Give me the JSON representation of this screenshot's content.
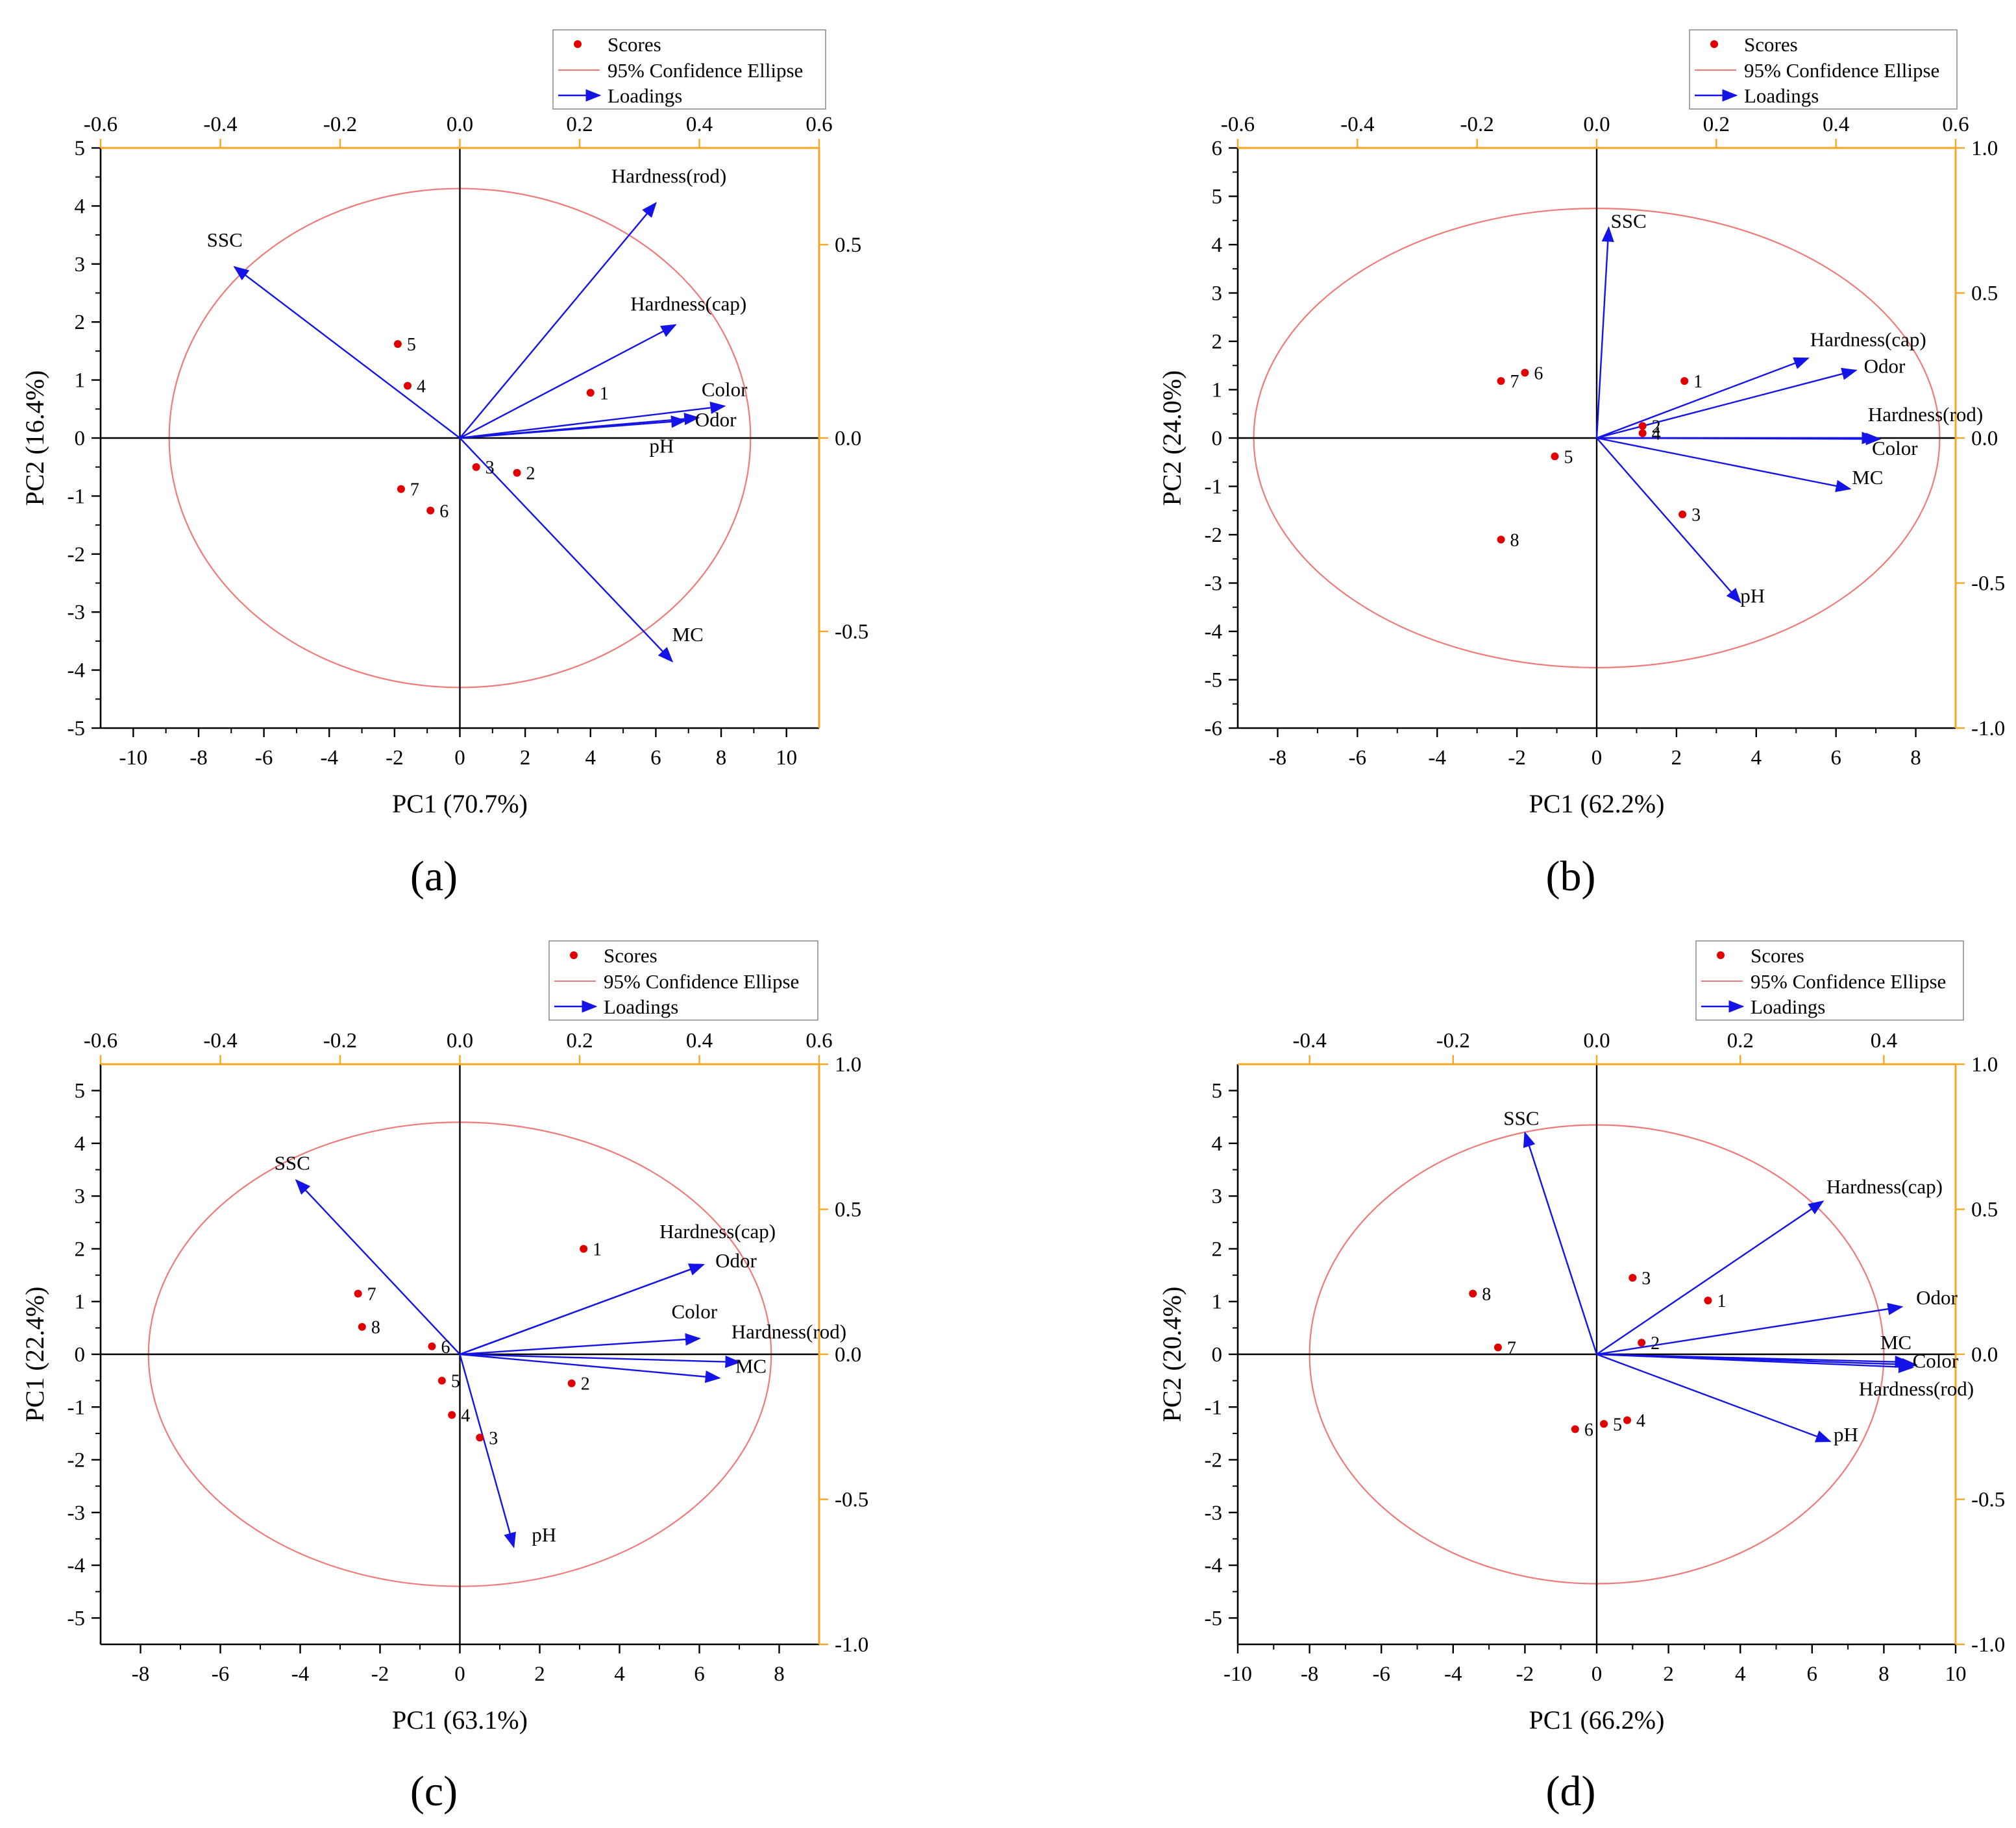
{
  "colors": {
    "score": "#e00000",
    "ellipse": "#f07a7a",
    "loading": "#1414e6",
    "right_axis": "#f5a623",
    "axis": "#000000"
  },
  "legend": {
    "scores": "Scores",
    "ellipse": "95% Confidence Ellipse",
    "loadings": "Loadings"
  },
  "chart_data": [
    {
      "panel": "(a)",
      "type": "scatter",
      "xlabel": "PC1 (70.7%)",
      "ylabel": "PC2 (16.4%)",
      "xlim": [
        -11,
        11
      ],
      "ylim": [
        -5,
        5
      ],
      "xticks": [
        -10,
        -8,
        -6,
        -4,
        -2,
        0,
        2,
        4,
        6,
        8,
        10
      ],
      "yticks": [
        -5,
        -4,
        -3,
        -2,
        -1,
        0,
        1,
        2,
        3,
        4,
        5
      ],
      "top_axis": {
        "ticks": [
          "-0.6",
          "-0.4",
          "-0.2",
          "0.0",
          "0.2",
          "0.4",
          "0.6"
        ],
        "lim": [
          -0.6,
          0.6
        ]
      },
      "right_axis": {
        "ticks": [
          "0.5",
          "0.0",
          "-0.5"
        ],
        "lim": [
          -0.75,
          0.75
        ]
      },
      "ellipse": {
        "rx": 8.9,
        "ry": 4.3
      },
      "scores": [
        {
          "label": "1",
          "x": 4.0,
          "y": 0.78
        },
        {
          "label": "2",
          "x": 1.75,
          "y": -0.6
        },
        {
          "label": "3",
          "x": 0.5,
          "y": -0.5
        },
        {
          "label": "4",
          "x": -1.6,
          "y": 0.9
        },
        {
          "label": "5",
          "x": -1.9,
          "y": 1.62
        },
        {
          "label": "6",
          "x": -0.9,
          "y": -1.25
        },
        {
          "label": "7",
          "x": -1.8,
          "y": -0.88
        }
      ],
      "loadings": [
        {
          "name": "Hardness(rod)",
          "x": 6.0,
          "y": 4.05,
          "lx": 6.4,
          "ly": 4.4,
          "anchor": "middle"
        },
        {
          "name": "SSC",
          "x": -6.9,
          "y": 2.95,
          "lx": -7.2,
          "ly": 3.3,
          "anchor": "middle"
        },
        {
          "name": "Hardness(cap)",
          "x": 6.6,
          "y": 1.95,
          "lx": 7.0,
          "ly": 2.2,
          "anchor": "middle"
        },
        {
          "name": "Color",
          "x": 8.1,
          "y": 0.55,
          "lx": 7.4,
          "ly": 0.72,
          "anchor": "start"
        },
        {
          "name": "Odor",
          "x": 7.3,
          "y": 0.35,
          "lx": 7.2,
          "ly": 0.2,
          "anchor": "start"
        },
        {
          "name": "pH",
          "x": 6.9,
          "y": 0.3,
          "lx": 5.8,
          "ly": -0.25,
          "anchor": "start"
        },
        {
          "name": "MC",
          "x": 6.5,
          "y": -3.85,
          "lx": 6.5,
          "ly": -3.5,
          "anchor": "start"
        }
      ]
    },
    {
      "panel": "(b)",
      "type": "scatter",
      "xlabel": "PC1 (62.2%)",
      "ylabel": "PC2 (24.0%)",
      "xlim": [
        -9,
        9
      ],
      "ylim": [
        -6,
        6
      ],
      "xticks": [
        -8,
        -6,
        -4,
        -2,
        0,
        2,
        4,
        6,
        8
      ],
      "yticks": [
        -6,
        -5,
        -4,
        -3,
        -2,
        -1,
        0,
        1,
        2,
        3,
        4,
        5,
        6
      ],
      "top_axis": {
        "ticks": [
          "-0.6",
          "-0.4",
          "-0.2",
          "0.0",
          "0.2",
          "0.4",
          "0.6"
        ],
        "lim": [
          -0.6,
          0.6
        ]
      },
      "right_axis": {
        "ticks": [
          "1.0",
          "0.5",
          "0.0",
          "-0.5",
          "-1.0"
        ],
        "lim": [
          -1.0,
          1.0
        ]
      },
      "ellipse": {
        "rx": 8.6,
        "ry": 4.75
      },
      "scores": [
        {
          "label": "1",
          "x": 2.2,
          "y": 1.18
        },
        {
          "label": "2",
          "x": 1.15,
          "y": 0.25
        },
        {
          "label": "3",
          "x": 2.15,
          "y": -1.58
        },
        {
          "label": "4",
          "x": 1.15,
          "y": 0.1
        },
        {
          "label": "5",
          "x": -1.05,
          "y": -0.38
        },
        {
          "label": "6",
          "x": -1.8,
          "y": 1.35
        },
        {
          "label": "7",
          "x": -2.4,
          "y": 1.18
        },
        {
          "label": "8",
          "x": -2.4,
          "y": -2.1
        }
      ],
      "loadings": [
        {
          "name": "SSC",
          "x": 0.3,
          "y": 4.35,
          "lx": 0.35,
          "ly": 4.35,
          "anchor": "start"
        },
        {
          "name": "Hardness(cap)",
          "x": 5.3,
          "y": 1.65,
          "lx": 5.35,
          "ly": 1.9,
          "anchor": "start"
        },
        {
          "name": "Odor",
          "x": 6.5,
          "y": 1.4,
          "lx": 6.7,
          "ly": 1.35,
          "anchor": "start"
        },
        {
          "name": "Hardness(rod)",
          "x": 7.0,
          "y": 0.0,
          "lx": 6.8,
          "ly": 0.35,
          "anchor": "start"
        },
        {
          "name": "Color",
          "x": 7.1,
          "y": -0.02,
          "lx": 6.9,
          "ly": -0.35,
          "anchor": "start"
        },
        {
          "name": "MC",
          "x": 6.35,
          "y": -1.05,
          "lx": 6.4,
          "ly": -0.95,
          "anchor": "start"
        },
        {
          "name": "pH",
          "x": 3.6,
          "y": -3.4,
          "lx": 3.6,
          "ly": -3.4,
          "anchor": "start"
        }
      ]
    },
    {
      "panel": "(c)",
      "type": "scatter",
      "xlabel": "PC1 (63.1%)",
      "ylabel": "PC1 (22.4%)",
      "xlim": [
        -9,
        9
      ],
      "ylim": [
        -5.5,
        5.5
      ],
      "xticks": [
        -8,
        -6,
        -4,
        -2,
        0,
        2,
        4,
        6,
        8
      ],
      "yticks": [
        -5,
        -4,
        -3,
        -2,
        -1,
        0,
        1,
        2,
        3,
        4,
        5
      ],
      "top_axis": {
        "ticks": [
          "-0.6",
          "-0.4",
          "-0.2",
          "0.0",
          "0.2",
          "0.4",
          "0.6"
        ],
        "lim": [
          -0.6,
          0.6
        ]
      },
      "right_axis": {
        "ticks": [
          "1.0",
          "0.5",
          "0.0",
          "-0.5",
          "-1.0"
        ],
        "lim": [
          -1.0,
          1.0
        ]
      },
      "ellipse": {
        "rx": 7.8,
        "ry": 4.4
      },
      "scores": [
        {
          "label": "1",
          "x": 3.1,
          "y": 2.0
        },
        {
          "label": "2",
          "x": 2.8,
          "y": -0.55
        },
        {
          "label": "3",
          "x": 0.5,
          "y": -1.58
        },
        {
          "label": "4",
          "x": -0.2,
          "y": -1.15
        },
        {
          "label": "5",
          "x": -0.45,
          "y": -0.5
        },
        {
          "label": "6",
          "x": -0.7,
          "y": 0.15
        },
        {
          "label": "7",
          "x": -2.55,
          "y": 1.15
        },
        {
          "label": "8",
          "x": -2.45,
          "y": 0.52
        }
      ],
      "loadings": [
        {
          "name": "SSC",
          "x": -4.1,
          "y": 3.3,
          "lx": -4.2,
          "ly": 3.5,
          "anchor": "middle"
        },
        {
          "name": "Hardness(cap)",
          "x": 6.1,
          "y": 1.7,
          "lx": 5.0,
          "ly": 2.2,
          "anchor": "start"
        },
        {
          "name": "Odor",
          "x": 6.1,
          "y": 1.7,
          "lx": 6.4,
          "ly": 1.65,
          "anchor": "start"
        },
        {
          "name": "Color",
          "x": 6.0,
          "y": 0.3,
          "lx": 5.3,
          "ly": 0.68,
          "anchor": "start"
        },
        {
          "name": "Hardness(rod)",
          "x": 7.0,
          "y": -0.15,
          "lx": 6.8,
          "ly": 0.3,
          "anchor": "start"
        },
        {
          "name": "MC",
          "x": 6.5,
          "y": -0.45,
          "lx": 6.9,
          "ly": -0.35,
          "anchor": "start"
        },
        {
          "name": "pH",
          "x": 1.35,
          "y": -3.65,
          "lx": 1.8,
          "ly": -3.55,
          "anchor": "start"
        }
      ]
    },
    {
      "panel": "(d)",
      "type": "scatter",
      "xlabel": "PC1 (66.2%)",
      "ylabel": "PC2 (20.4%)",
      "xlim": [
        -10,
        10
      ],
      "ylim": [
        -5.5,
        5.5
      ],
      "xticks": [
        -10,
        -8,
        -6,
        -4,
        -2,
        0,
        2,
        4,
        6,
        8,
        10
      ],
      "yticks": [
        -5,
        -4,
        -3,
        -2,
        -1,
        0,
        1,
        2,
        3,
        4,
        5
      ],
      "top_axis": {
        "ticks": [
          "-0.4",
          "-0.2",
          "0.0",
          "0.2",
          "0.4"
        ],
        "lim": [
          -0.5,
          0.5
        ]
      },
      "right_axis": {
        "ticks": [
          "1.0",
          "0.5",
          "0.0",
          "-0.5",
          "-1.0"
        ],
        "lim": [
          -1.0,
          1.0
        ]
      },
      "ellipse": {
        "rx": 8.0,
        "ry": 4.35
      },
      "scores": [
        {
          "label": "1",
          "x": 3.1,
          "y": 1.02
        },
        {
          "label": "2",
          "x": 1.25,
          "y": 0.22
        },
        {
          "label": "3",
          "x": 1.0,
          "y": 1.45
        },
        {
          "label": "4",
          "x": 0.85,
          "y": -1.25
        },
        {
          "label": "5",
          "x": 0.2,
          "y": -1.32
        },
        {
          "label": "6",
          "x": -0.6,
          "y": -1.42
        },
        {
          "label": "7",
          "x": -2.75,
          "y": 0.13
        },
        {
          "label": "8",
          "x": -3.45,
          "y": 1.15
        }
      ],
      "loadings": [
        {
          "name": "SSC",
          "x": -2.0,
          "y": 4.2,
          "lx": -2.1,
          "ly": 4.35,
          "anchor": "middle"
        },
        {
          "name": "Hardness(cap)",
          "x": 6.3,
          "y": 2.9,
          "lx": 6.4,
          "ly": 3.05,
          "anchor": "start"
        },
        {
          "name": "Odor",
          "x": 8.5,
          "y": 0.9,
          "lx": 8.9,
          "ly": 0.95,
          "anchor": "start"
        },
        {
          "name": "MC",
          "x": 8.7,
          "y": -0.15,
          "lx": 7.9,
          "ly": 0.1,
          "anchor": "start"
        },
        {
          "name": "Color",
          "x": 8.9,
          "y": -0.2,
          "lx": 8.8,
          "ly": -0.25,
          "anchor": "start"
        },
        {
          "name": "Hardness(rod)",
          "x": 8.8,
          "y": -0.25,
          "lx": 7.3,
          "ly": -0.78,
          "anchor": "start"
        },
        {
          "name": "pH",
          "x": 6.5,
          "y": -1.65,
          "lx": 6.6,
          "ly": -1.65,
          "anchor": "start"
        }
      ]
    }
  ]
}
